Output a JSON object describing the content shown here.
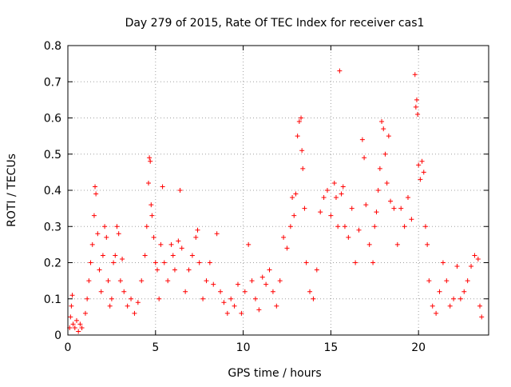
{
  "chart_data": {
    "type": "scatter",
    "title": "Day 279 of 2015, Rate Of TEC Index for receiver cas1",
    "xlabel": "GPS time / hours",
    "ylabel": "ROTI / TECUs",
    "xlim": [
      0,
      24
    ],
    "ylim": [
      0,
      0.8
    ],
    "xticks": [
      0,
      5,
      10,
      15,
      20
    ],
    "yticks": [
      0,
      0.1,
      0.2,
      0.3,
      0.4,
      0.5,
      0.6,
      0.7,
      0.8
    ],
    "xtick_labels": [
      "0",
      "5",
      "10",
      "15",
      "20"
    ],
    "ytick_labels": [
      "0",
      "0.1",
      "0.2",
      "0.3",
      "0.4",
      "0.5",
      "0.6",
      "0.7",
      "0.8"
    ],
    "grid": true,
    "marker": "plus",
    "color": "#ff0000",
    "series": [
      {
        "points": [
          [
            0.1,
            0.02
          ],
          [
            0.15,
            0.05
          ],
          [
            0.2,
            0.08
          ],
          [
            0.25,
            0.11
          ],
          [
            0.3,
            0.03
          ],
          [
            0.4,
            0.02
          ],
          [
            0.5,
            0.04
          ],
          [
            0.6,
            0.01
          ],
          [
            0.7,
            0.03
          ],
          [
            0.8,
            0.02
          ],
          [
            1.0,
            0.06
          ],
          [
            1.1,
            0.1
          ],
          [
            1.2,
            0.15
          ],
          [
            1.3,
            0.2
          ],
          [
            1.4,
            0.25
          ],
          [
            1.5,
            0.33
          ],
          [
            1.55,
            0.41
          ],
          [
            1.6,
            0.39
          ],
          [
            1.7,
            0.28
          ],
          [
            1.8,
            0.18
          ],
          [
            1.9,
            0.12
          ],
          [
            2.0,
            0.22
          ],
          [
            2.1,
            0.3
          ],
          [
            2.2,
            0.27
          ],
          [
            2.3,
            0.15
          ],
          [
            2.4,
            0.08
          ],
          [
            2.5,
            0.1
          ],
          [
            2.6,
            0.2
          ],
          [
            2.7,
            0.22
          ],
          [
            2.8,
            0.3
          ],
          [
            2.9,
            0.28
          ],
          [
            3.0,
            0.15
          ],
          [
            3.1,
            0.21
          ],
          [
            3.2,
            0.12
          ],
          [
            3.4,
            0.08
          ],
          [
            3.6,
            0.1
          ],
          [
            3.8,
            0.06
          ],
          [
            4.0,
            0.09
          ],
          [
            4.2,
            0.15
          ],
          [
            4.4,
            0.22
          ],
          [
            4.5,
            0.3
          ],
          [
            4.6,
            0.42
          ],
          [
            4.65,
            0.49
          ],
          [
            4.7,
            0.48
          ],
          [
            4.75,
            0.36
          ],
          [
            4.8,
            0.33
          ],
          [
            4.9,
            0.27
          ],
          [
            5.0,
            0.2
          ],
          [
            5.1,
            0.18
          ],
          [
            5.2,
            0.1
          ],
          [
            5.3,
            0.25
          ],
          [
            5.4,
            0.41
          ],
          [
            5.5,
            0.2
          ],
          [
            5.7,
            0.15
          ],
          [
            5.9,
            0.25
          ],
          [
            6.0,
            0.22
          ],
          [
            6.1,
            0.18
          ],
          [
            6.3,
            0.26
          ],
          [
            6.4,
            0.4
          ],
          [
            6.5,
            0.24
          ],
          [
            6.7,
            0.12
          ],
          [
            6.9,
            0.18
          ],
          [
            7.1,
            0.22
          ],
          [
            7.3,
            0.27
          ],
          [
            7.4,
            0.29
          ],
          [
            7.5,
            0.2
          ],
          [
            7.7,
            0.1
          ],
          [
            7.9,
            0.15
          ],
          [
            8.1,
            0.2
          ],
          [
            8.3,
            0.14
          ],
          [
            8.5,
            0.28
          ],
          [
            8.7,
            0.12
          ],
          [
            8.9,
            0.09
          ],
          [
            9.1,
            0.06
          ],
          [
            9.3,
            0.1
          ],
          [
            9.5,
            0.08
          ],
          [
            9.7,
            0.14
          ],
          [
            9.9,
            0.06
          ],
          [
            10.1,
            0.12
          ],
          [
            10.3,
            0.25
          ],
          [
            10.5,
            0.15
          ],
          [
            10.7,
            0.1
          ],
          [
            10.9,
            0.07
          ],
          [
            11.1,
            0.16
          ],
          [
            11.3,
            0.14
          ],
          [
            11.5,
            0.18
          ],
          [
            11.7,
            0.12
          ],
          [
            11.9,
            0.08
          ],
          [
            12.1,
            0.15
          ],
          [
            12.3,
            0.27
          ],
          [
            12.5,
            0.24
          ],
          [
            12.7,
            0.3
          ],
          [
            12.8,
            0.38
          ],
          [
            12.9,
            0.33
          ],
          [
            13.0,
            0.39
          ],
          [
            13.1,
            0.55
          ],
          [
            13.2,
            0.59
          ],
          [
            13.3,
            0.6
          ],
          [
            13.35,
            0.51
          ],
          [
            13.4,
            0.46
          ],
          [
            13.5,
            0.35
          ],
          [
            13.6,
            0.2
          ],
          [
            13.8,
            0.12
          ],
          [
            14.0,
            0.1
          ],
          [
            14.2,
            0.18
          ],
          [
            14.4,
            0.34
          ],
          [
            14.6,
            0.38
          ],
          [
            14.8,
            0.4
          ],
          [
            15.0,
            0.33
          ],
          [
            15.2,
            0.42
          ],
          [
            15.3,
            0.38
          ],
          [
            15.4,
            0.3
          ],
          [
            15.5,
            0.73
          ],
          [
            15.6,
            0.39
          ],
          [
            15.7,
            0.41
          ],
          [
            15.8,
            0.3
          ],
          [
            16.0,
            0.27
          ],
          [
            16.2,
            0.35
          ],
          [
            16.4,
            0.2
          ],
          [
            16.6,
            0.29
          ],
          [
            16.8,
            0.54
          ],
          [
            16.9,
            0.49
          ],
          [
            17.0,
            0.36
          ],
          [
            17.2,
            0.25
          ],
          [
            17.4,
            0.2
          ],
          [
            17.5,
            0.3
          ],
          [
            17.6,
            0.34
          ],
          [
            17.7,
            0.4
          ],
          [
            17.8,
            0.46
          ],
          [
            17.9,
            0.59
          ],
          [
            18.0,
            0.57
          ],
          [
            18.1,
            0.5
          ],
          [
            18.2,
            0.42
          ],
          [
            18.3,
            0.55
          ],
          [
            18.4,
            0.37
          ],
          [
            18.6,
            0.35
          ],
          [
            18.8,
            0.25
          ],
          [
            19.0,
            0.35
          ],
          [
            19.2,
            0.3
          ],
          [
            19.4,
            0.38
          ],
          [
            19.6,
            0.32
          ],
          [
            19.8,
            0.72
          ],
          [
            19.85,
            0.63
          ],
          [
            19.9,
            0.65
          ],
          [
            19.95,
            0.61
          ],
          [
            20.0,
            0.47
          ],
          [
            20.1,
            0.43
          ],
          [
            20.2,
            0.48
          ],
          [
            20.3,
            0.45
          ],
          [
            20.4,
            0.3
          ],
          [
            20.5,
            0.25
          ],
          [
            20.6,
            0.15
          ],
          [
            20.8,
            0.08
          ],
          [
            21.0,
            0.06
          ],
          [
            21.2,
            0.12
          ],
          [
            21.4,
            0.2
          ],
          [
            21.6,
            0.15
          ],
          [
            21.8,
            0.08
          ],
          [
            22.0,
            0.1
          ],
          [
            22.2,
            0.19
          ],
          [
            22.4,
            0.1
          ],
          [
            22.6,
            0.12
          ],
          [
            22.8,
            0.15
          ],
          [
            23.0,
            0.19
          ],
          [
            23.2,
            0.22
          ],
          [
            23.4,
            0.21
          ],
          [
            23.5,
            0.08
          ],
          [
            23.6,
            0.05
          ]
        ]
      }
    ]
  }
}
